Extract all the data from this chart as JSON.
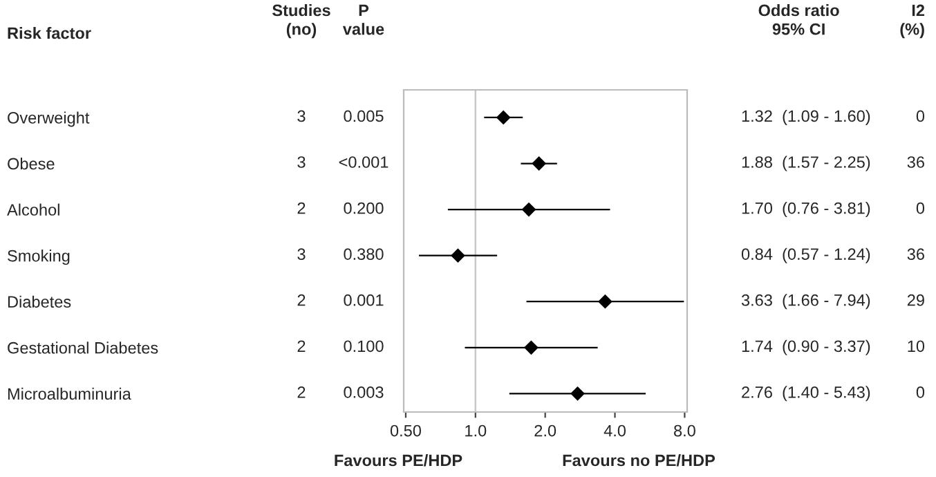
{
  "chart_data": [
    {
      "type": "other",
      "title": "Studies\n(no)",
      "annotations": [
        "3",
        "3",
        "2",
        "3",
        "2",
        "2",
        "2"
      ]
    },
    {
      "type": "other",
      "title": "P\nvalue",
      "annotations": [
        "0.005",
        "<0.001",
        "0.200",
        "0.380",
        "0.001",
        "0.100",
        "0.003"
      ]
    },
    {
      "type": "scatter",
      "ylabel": "Risk factor",
      "categories": [
        "Overweight",
        "Obese",
        "Alcohol",
        "Smoking",
        "Diabetes",
        "Gestational Diabetes",
        "Microalbuminuria"
      ],
      "orientation": "horizontal",
      "color": "#000000",
      "values": [
        1.32,
        1.88,
        1.7,
        0.84,
        3.63,
        1.74,
        2.76
      ],
      "errors": [
        [
          1.09,
          1.6
        ],
        [
          1.57,
          2.25
        ],
        [
          0.76,
          3.81
        ],
        [
          0.57,
          1.24
        ],
        [
          1.66,
          7.94
        ],
        [
          0.9,
          3.37
        ],
        [
          1.4,
          5.43
        ]
      ],
      "log": "x",
      "xlim": [
        0.49,
        8.2
      ],
      "xticks": [
        {
          "value": 0.5,
          "label": "0.50"
        },
        {
          "value": 1,
          "label": "1.0"
        },
        {
          "value": 2,
          "label": "2.0"
        },
        {
          "value": 4,
          "label": "4.0"
        },
        {
          "value": 8,
          "label": "8.0"
        }
      ],
      "marker": "diamond",
      "grid": false,
      "tick_labels": "x",
      "ref_lines": [
        {
          "axis": "x",
          "value": 1,
          "color": "#c8c8c8"
        }
      ],
      "annotations": [
        "Favours PE/HDP",
        "Favours no PE/HDP"
      ]
    },
    {
      "type": "other",
      "title": "Odds ratio\n95% CI",
      "annotations": [
        "1.32  (1.09 - 1.60)",
        "1.88  (1.57 - 2.25)",
        "1.70  (0.76 - 3.81)",
        "0.84  (0.57 - 1.24)",
        "3.63  (1.66 - 7.94)",
        "1.74  (0.90 - 3.37)",
        "2.76  (1.40 - 5.43)"
      ]
    },
    {
      "type": "other",
      "title": "I2\n(%)",
      "annotations": [
        "0",
        "36",
        "0",
        "36",
        "29",
        "10",
        "0"
      ]
    }
  ]
}
